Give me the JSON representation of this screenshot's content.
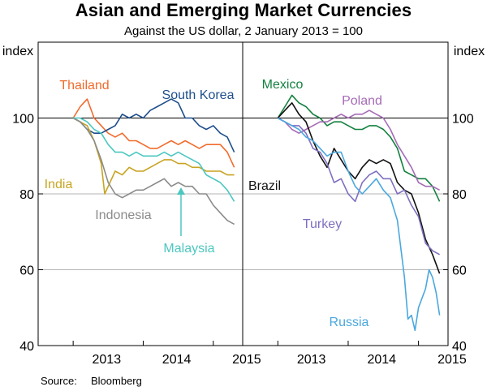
{
  "title": "Asian and Emerging Market Currencies",
  "subtitle": "Against the US dollar, 2 January 2013 = 100",
  "source": {
    "label": "Source:",
    "value": "Bloomberg"
  },
  "colors": {
    "thailand": "#f26b2c",
    "south_korea": "#1f4e8c",
    "india": "#c8a422",
    "indonesia": "#8b8b8b",
    "malaysia": "#4cc7c0",
    "mexico": "#14813f",
    "poland": "#a66bb6",
    "brazil": "#111111",
    "turkey": "#7f6fc0",
    "russia": "#4aa8de"
  },
  "chart_data": [
    {
      "type": "line",
      "ylabel": "index",
      "ylim": [
        40,
        120
      ],
      "yticks": [
        40,
        60,
        80,
        100
      ],
      "xlim": [
        2012.5,
        2015.42
      ],
      "xticks": [
        2013,
        2014,
        2015
      ],
      "xtick_labels": [
        "2013",
        "2014",
        "2015"
      ],
      "series": [
        {
          "name": "Thailand",
          "color_key": "thailand",
          "x": [
            2013.0,
            2013.1,
            2013.2,
            2013.3,
            2013.4,
            2013.5,
            2013.6,
            2013.7,
            2013.8,
            2013.9,
            2014.0,
            2014.1,
            2014.2,
            2014.3,
            2014.4,
            2014.5,
            2014.6,
            2014.7,
            2014.8,
            2014.9,
            2015.0,
            2015.1,
            2015.2,
            2015.3
          ],
          "y": [
            100,
            103,
            105,
            100,
            98,
            96,
            95,
            96,
            94,
            94,
            93,
            92,
            92,
            93,
            94,
            93,
            94,
            93,
            92,
            93,
            93,
            93,
            91,
            87
          ]
        },
        {
          "name": "South Korea",
          "color_key": "south_korea",
          "x": [
            2013.0,
            2013.1,
            2013.2,
            2013.3,
            2013.4,
            2013.5,
            2013.6,
            2013.7,
            2013.8,
            2013.9,
            2014.0,
            2014.1,
            2014.2,
            2014.3,
            2014.4,
            2014.5,
            2014.6,
            2014.7,
            2014.8,
            2014.9,
            2015.0,
            2015.1,
            2015.2,
            2015.3
          ],
          "y": [
            100,
            99,
            97,
            96,
            96,
            97,
            98,
            101,
            100,
            101,
            100,
            102,
            103,
            104,
            105,
            104,
            100,
            100,
            98,
            97,
            98,
            96,
            95,
            91
          ]
        },
        {
          "name": "India",
          "color_key": "india",
          "x": [
            2013.0,
            2013.1,
            2013.2,
            2013.3,
            2013.35,
            2013.4,
            2013.45,
            2013.5,
            2013.6,
            2013.7,
            2013.8,
            2013.9,
            2014.0,
            2014.1,
            2014.2,
            2014.3,
            2014.4,
            2014.5,
            2014.6,
            2014.7,
            2014.8,
            2014.9,
            2015.0,
            2015.1,
            2015.2,
            2015.3
          ],
          "y": [
            100,
            99,
            98,
            94,
            91,
            88,
            80,
            82,
            86,
            85,
            87,
            86,
            86,
            87,
            88,
            89,
            89,
            88,
            88,
            87,
            87,
            86,
            86,
            86,
            85,
            85
          ]
        },
        {
          "name": "Indonesia",
          "color_key": "indonesia",
          "x": [
            2013.0,
            2013.1,
            2013.2,
            2013.3,
            2013.4,
            2013.5,
            2013.6,
            2013.7,
            2013.8,
            2013.9,
            2014.0,
            2014.1,
            2014.2,
            2014.3,
            2014.4,
            2014.5,
            2014.6,
            2014.7,
            2014.8,
            2014.9,
            2015.0,
            2015.1,
            2015.2,
            2015.3
          ],
          "y": [
            100,
            99,
            97,
            94,
            89,
            83,
            80,
            79,
            80,
            81,
            81,
            82,
            83,
            84,
            82,
            83,
            82,
            82,
            80,
            80,
            77,
            75,
            73,
            72
          ]
        },
        {
          "name": "Malaysia",
          "color_key": "malaysia",
          "x": [
            2013.0,
            2013.1,
            2013.2,
            2013.3,
            2013.4,
            2013.5,
            2013.6,
            2013.7,
            2013.8,
            2013.9,
            2014.0,
            2014.1,
            2014.2,
            2014.3,
            2014.4,
            2014.5,
            2014.6,
            2014.7,
            2014.8,
            2014.9,
            2015.0,
            2015.1,
            2015.2,
            2015.3
          ],
          "y": [
            100,
            100,
            99,
            97,
            96,
            93,
            91,
            91,
            90,
            91,
            90,
            90,
            90,
            91,
            90,
            91,
            90,
            89,
            88,
            85,
            84,
            83,
            81,
            78
          ]
        }
      ],
      "annotations": [
        "Thailand",
        "South Korea",
        "India",
        "Indonesia",
        "Malaysia"
      ]
    },
    {
      "type": "line",
      "ylabel": "index",
      "ylim": [
        40,
        120
      ],
      "yticks": [
        40,
        60,
        80,
        100
      ],
      "xlim": [
        2012.5,
        2015.42
      ],
      "xticks": [
        2013,
        2014,
        2015
      ],
      "xtick_labels": [
        "2013",
        "2014",
        "2015"
      ],
      "series": [
        {
          "name": "Mexico",
          "color_key": "mexico",
          "x": [
            2013.0,
            2013.1,
            2013.2,
            2013.3,
            2013.4,
            2013.5,
            2013.6,
            2013.7,
            2013.8,
            2013.9,
            2014.0,
            2014.1,
            2014.2,
            2014.3,
            2014.4,
            2014.5,
            2014.6,
            2014.7,
            2014.8,
            2014.9,
            2015.0,
            2015.1,
            2015.2,
            2015.3
          ],
          "y": [
            100,
            103,
            106,
            104,
            103,
            101,
            100,
            98,
            99,
            99,
            98,
            97,
            97,
            98,
            98,
            97,
            95,
            92,
            86,
            85,
            84,
            84,
            82,
            78
          ]
        },
        {
          "name": "Poland",
          "color_key": "poland",
          "x": [
            2013.0,
            2013.1,
            2013.2,
            2013.3,
            2013.4,
            2013.5,
            2013.6,
            2013.7,
            2013.8,
            2013.9,
            2014.0,
            2014.1,
            2014.2,
            2014.3,
            2014.4,
            2014.5,
            2014.6,
            2014.7,
            2014.8,
            2014.9,
            2015.0,
            2015.1,
            2015.2,
            2015.3
          ],
          "y": [
            100,
            99,
            97,
            96,
            97,
            98,
            99,
            99,
            100,
            101,
            100,
            101,
            101,
            102,
            101,
            100,
            97,
            93,
            90,
            87,
            83,
            82,
            82,
            81
          ]
        },
        {
          "name": "Brazil",
          "color_key": "brazil",
          "x": [
            2013.0,
            2013.1,
            2013.2,
            2013.3,
            2013.4,
            2013.5,
            2013.6,
            2013.7,
            2013.8,
            2013.9,
            2014.0,
            2014.1,
            2014.2,
            2014.3,
            2014.4,
            2014.5,
            2014.6,
            2014.7,
            2014.8,
            2014.9,
            2015.0,
            2015.1,
            2015.2,
            2015.3
          ],
          "y": [
            100,
            102,
            104,
            101,
            99,
            94,
            90,
            87,
            92,
            89,
            86,
            84,
            87,
            89,
            88,
            89,
            88,
            83,
            81,
            80,
            75,
            68,
            64,
            59
          ]
        },
        {
          "name": "Turkey",
          "color_key": "turkey",
          "x": [
            2013.0,
            2013.1,
            2013.2,
            2013.3,
            2013.4,
            2013.5,
            2013.6,
            2013.7,
            2013.8,
            2013.9,
            2014.0,
            2014.1,
            2014.2,
            2014.3,
            2014.4,
            2014.5,
            2014.6,
            2014.7,
            2014.8,
            2014.9,
            2015.0,
            2015.1,
            2015.2,
            2015.3
          ],
          "y": [
            100,
            99,
            98,
            98,
            96,
            92,
            91,
            88,
            83,
            84,
            80,
            78,
            83,
            85,
            86,
            84,
            84,
            80,
            81,
            77,
            74,
            67,
            65,
            64
          ]
        },
        {
          "name": "Russia",
          "color_key": "russia",
          "x": [
            2013.0,
            2013.1,
            2013.2,
            2013.3,
            2013.4,
            2013.5,
            2013.6,
            2013.7,
            2013.8,
            2013.9,
            2014.0,
            2014.1,
            2014.2,
            2014.3,
            2014.4,
            2014.5,
            2014.6,
            2014.7,
            2014.8,
            2014.85,
            2014.9,
            2014.95,
            2015.0,
            2015.1,
            2015.15,
            2015.2,
            2015.25,
            2015.3
          ],
          "y": [
            100,
            99,
            98,
            97,
            95,
            94,
            92,
            90,
            91,
            91,
            86,
            82,
            80,
            82,
            84,
            81,
            79,
            73,
            58,
            47,
            48,
            44,
            50,
            55,
            60,
            58,
            54,
            48
          ]
        }
      ],
      "annotations": [
        "Mexico",
        "Poland",
        "Brazil",
        "Turkey",
        "Russia"
      ]
    }
  ]
}
